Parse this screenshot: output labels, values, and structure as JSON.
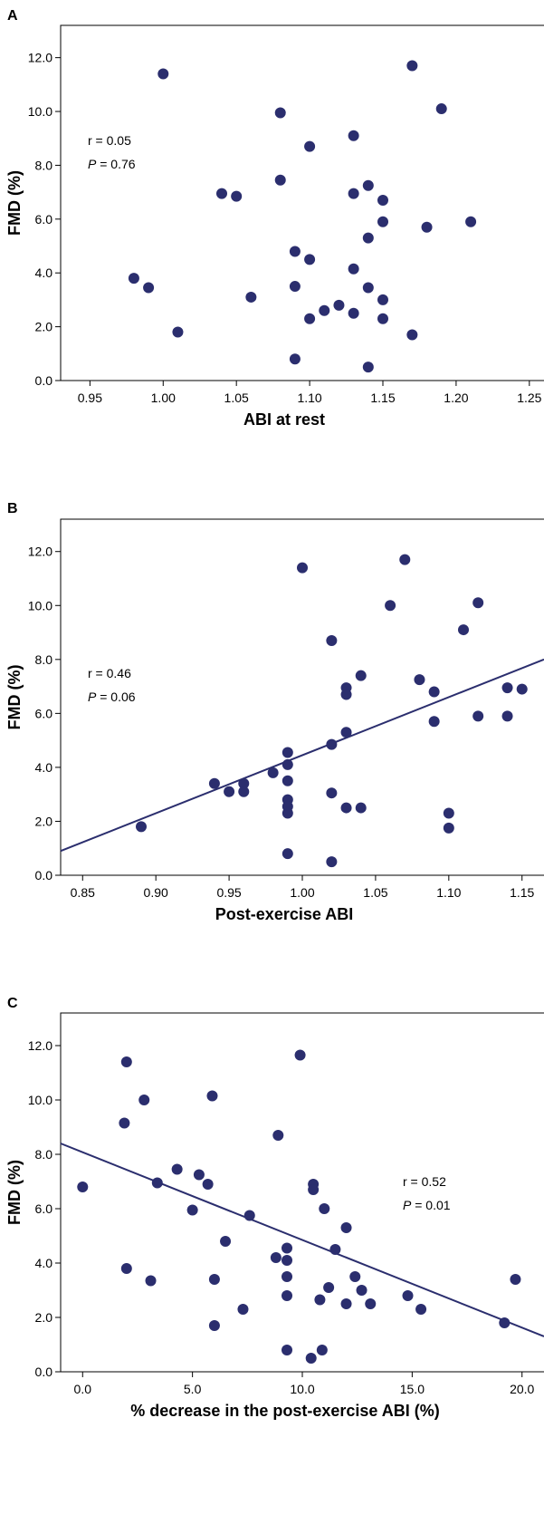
{
  "chart_data": [
    {
      "type": "scatter",
      "panel_label": "A",
      "xlabel": "ABI at rest",
      "ylabel": "FMD (%)",
      "xlim": [
        0.93,
        1.26
      ],
      "ylim": [
        0,
        13.2
      ],
      "xticks": [
        "0.95",
        "1.00",
        "1.05",
        "1.10",
        "1.15",
        "1.20",
        "1.25"
      ],
      "yticks": [
        "0.0",
        "2.0",
        "4.0",
        "6.0",
        "8.0",
        "10.0",
        "12.0"
      ],
      "stat_r": "r = 0.05",
      "stat_p_label": "P",
      "stat_p_value": " = 0.76",
      "fit_line": null,
      "points": [
        {
          "x": 0.98,
          "y": 3.8
        },
        {
          "x": 0.99,
          "y": 3.45
        },
        {
          "x": 1.0,
          "y": 11.4
        },
        {
          "x": 1.01,
          "y": 1.8
        },
        {
          "x": 1.04,
          "y": 6.95
        },
        {
          "x": 1.05,
          "y": 6.85
        },
        {
          "x": 1.06,
          "y": 3.1
        },
        {
          "x": 1.08,
          "y": 9.95
        },
        {
          "x": 1.08,
          "y": 7.45
        },
        {
          "x": 1.09,
          "y": 4.8
        },
        {
          "x": 1.09,
          "y": 3.5
        },
        {
          "x": 1.09,
          "y": 0.8
        },
        {
          "x": 1.1,
          "y": 8.7
        },
        {
          "x": 1.1,
          "y": 4.5
        },
        {
          "x": 1.1,
          "y": 2.3
        },
        {
          "x": 1.11,
          "y": 2.6
        },
        {
          "x": 1.12,
          "y": 2.8
        },
        {
          "x": 1.13,
          "y": 9.1
        },
        {
          "x": 1.13,
          "y": 6.95
        },
        {
          "x": 1.13,
          "y": 4.15
        },
        {
          "x": 1.13,
          "y": 2.5
        },
        {
          "x": 1.14,
          "y": 7.25
        },
        {
          "x": 1.14,
          "y": 5.3
        },
        {
          "x": 1.14,
          "y": 3.45
        },
        {
          "x": 1.14,
          "y": 0.5
        },
        {
          "x": 1.15,
          "y": 6.7
        },
        {
          "x": 1.15,
          "y": 5.9
        },
        {
          "x": 1.15,
          "y": 3.0
        },
        {
          "x": 1.15,
          "y": 2.3
        },
        {
          "x": 1.17,
          "y": 11.7
        },
        {
          "x": 1.17,
          "y": 1.7
        },
        {
          "x": 1.18,
          "y": 5.7
        },
        {
          "x": 1.19,
          "y": 10.1
        },
        {
          "x": 1.21,
          "y": 5.9
        }
      ]
    },
    {
      "type": "scatter",
      "panel_label": "B",
      "xlabel": "Post-exercise ABI",
      "ylabel": "FMD (%)",
      "xlim": [
        0.835,
        1.165
      ],
      "ylim": [
        0,
        13.2
      ],
      "xticks": [
        "0.85",
        "0.90",
        "0.95",
        "1.00",
        "1.05",
        "1.10",
        "1.15"
      ],
      "yticks": [
        "0.0",
        "2.0",
        "4.0",
        "6.0",
        "8.0",
        "10.0",
        "12.0"
      ],
      "stat_r": "r = 0.46",
      "stat_p_label": "P",
      "stat_p_value": " = 0.06",
      "fit_line": {
        "x0": 0.835,
        "y0": 0.9,
        "x1": 1.165,
        "y1": 8.0
      },
      "points": [
        {
          "x": 0.89,
          "y": 1.8
        },
        {
          "x": 0.94,
          "y": 3.4
        },
        {
          "x": 0.95,
          "y": 3.1
        },
        {
          "x": 0.96,
          "y": 3.4
        },
        {
          "x": 0.96,
          "y": 3.1
        },
        {
          "x": 0.98,
          "y": 3.8
        },
        {
          "x": 0.99,
          "y": 4.55
        },
        {
          "x": 0.99,
          "y": 4.1
        },
        {
          "x": 0.99,
          "y": 3.5
        },
        {
          "x": 0.99,
          "y": 2.8
        },
        {
          "x": 0.99,
          "y": 2.55
        },
        {
          "x": 0.99,
          "y": 2.3
        },
        {
          "x": 0.99,
          "y": 0.8
        },
        {
          "x": 1.0,
          "y": 11.4
        },
        {
          "x": 1.02,
          "y": 8.7
        },
        {
          "x": 1.02,
          "y": 4.85
        },
        {
          "x": 1.02,
          "y": 3.05
        },
        {
          "x": 1.02,
          "y": 0.5
        },
        {
          "x": 1.03,
          "y": 6.95
        },
        {
          "x": 1.03,
          "y": 6.7
        },
        {
          "x": 1.03,
          "y": 5.3
        },
        {
          "x": 1.03,
          "y": 2.5
        },
        {
          "x": 1.04,
          "y": 7.4
        },
        {
          "x": 1.04,
          "y": 2.5
        },
        {
          "x": 1.06,
          "y": 10.0
        },
        {
          "x": 1.07,
          "y": 11.7
        },
        {
          "x": 1.08,
          "y": 7.25
        },
        {
          "x": 1.09,
          "y": 6.8
        },
        {
          "x": 1.09,
          "y": 5.7
        },
        {
          "x": 1.1,
          "y": 2.3
        },
        {
          "x": 1.1,
          "y": 1.75
        },
        {
          "x": 1.11,
          "y": 9.1
        },
        {
          "x": 1.12,
          "y": 10.1
        },
        {
          "x": 1.12,
          "y": 5.9
        },
        {
          "x": 1.14,
          "y": 6.95
        },
        {
          "x": 1.14,
          "y": 5.9
        },
        {
          "x": 1.15,
          "y": 6.9
        }
      ]
    },
    {
      "type": "scatter",
      "panel_label": "C",
      "xlabel": "% decrease in the post-exercise ABI (%)",
      "ylabel": "FMD (%)",
      "xlim": [
        -1.0,
        21.0
      ],
      "ylim": [
        0,
        13.2
      ],
      "xticks": [
        "0.0",
        "5.0",
        "10.0",
        "15.0",
        "20.0"
      ],
      "yticks": [
        "0.0",
        "2.0",
        "4.0",
        "6.0",
        "8.0",
        "10.0",
        "12.0"
      ],
      "stat_r": "r = 0.52",
      "stat_p_label": "P",
      "stat_p_value": " = 0.01",
      "fit_line": {
        "x0": -1.0,
        "y0": 8.4,
        "x1": 21.0,
        "y1": 1.3
      },
      "points": [
        {
          "x": 0.0,
          "y": 6.8
        },
        {
          "x": 1.9,
          "y": 9.15
        },
        {
          "x": 2.0,
          "y": 11.4
        },
        {
          "x": 2.0,
          "y": 3.8
        },
        {
          "x": 2.8,
          "y": 10.0
        },
        {
          "x": 3.1,
          "y": 3.35
        },
        {
          "x": 3.4,
          "y": 6.95
        },
        {
          "x": 4.3,
          "y": 7.45
        },
        {
          "x": 5.0,
          "y": 5.95
        },
        {
          "x": 5.3,
          "y": 7.25
        },
        {
          "x": 5.7,
          "y": 6.9
        },
        {
          "x": 5.9,
          "y": 10.15
        },
        {
          "x": 6.0,
          "y": 3.4
        },
        {
          "x": 6.0,
          "y": 1.7
        },
        {
          "x": 6.5,
          "y": 4.8
        },
        {
          "x": 7.3,
          "y": 2.3
        },
        {
          "x": 7.6,
          "y": 5.75
        },
        {
          "x": 8.8,
          "y": 4.2
        },
        {
          "x": 8.9,
          "y": 8.7
        },
        {
          "x": 9.3,
          "y": 4.55
        },
        {
          "x": 9.3,
          "y": 4.1
        },
        {
          "x": 9.3,
          "y": 3.5
        },
        {
          "x": 9.3,
          "y": 2.8
        },
        {
          "x": 9.3,
          "y": 0.8
        },
        {
          "x": 9.9,
          "y": 11.65
        },
        {
          "x": 10.4,
          "y": 0.5
        },
        {
          "x": 10.5,
          "y": 6.9
        },
        {
          "x": 10.5,
          "y": 6.7
        },
        {
          "x": 10.8,
          "y": 2.65
        },
        {
          "x": 10.9,
          "y": 0.8
        },
        {
          "x": 11.0,
          "y": 6.0
        },
        {
          "x": 11.2,
          "y": 3.1
        },
        {
          "x": 11.5,
          "y": 4.5
        },
        {
          "x": 12.0,
          "y": 5.3
        },
        {
          "x": 12.0,
          "y": 2.5
        },
        {
          "x": 12.4,
          "y": 3.5
        },
        {
          "x": 12.7,
          "y": 3.0
        },
        {
          "x": 13.1,
          "y": 2.5
        },
        {
          "x": 14.8,
          "y": 2.8
        },
        {
          "x": 15.4,
          "y": 2.3
        },
        {
          "x": 19.2,
          "y": 1.8
        },
        {
          "x": 19.7,
          "y": 3.4
        }
      ]
    }
  ]
}
